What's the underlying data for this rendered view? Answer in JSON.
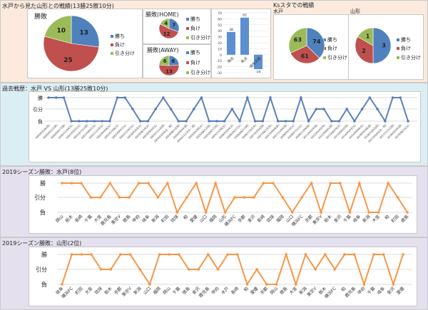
{
  "colors": {
    "win": "#4f81bd",
    "loss": "#c0504d",
    "draw": "#9bbb59",
    "line_history": "#5a80b8",
    "line_season": "#f79646",
    "top_bg": "#fbeadd",
    "history_bg": "#dbeef4",
    "season_bg": "#e5e0ee"
  },
  "legend": {
    "win": "勝ち",
    "loss": "負け",
    "draw": "引き分け"
  },
  "top": {
    "title": "水戸から見た山形との戦績(13勝25敗10分)",
    "total": {
      "title": "勝敗",
      "win": 13,
      "loss": 25,
      "draw": 10
    },
    "home": {
      "title": "勝敗(HOME)",
      "win": 7,
      "loss": 12,
      "draw": 4
    },
    "away": {
      "title": "勝敗(AWAY)",
      "win": 6,
      "loss": 13,
      "draw": 6
    },
    "goals": {
      "type": "bar",
      "categories": [
        "得点",
        "失点",
        "得失点差"
      ],
      "values": [
        38,
        62,
        -24
      ],
      "ylim": [
        -30,
        70
      ],
      "ticks": [
        "70",
        "60",
        "50",
        "40",
        "30",
        "20",
        "10",
        "0",
        "-10",
        "-20",
        "-30"
      ]
    }
  },
  "ks": {
    "title": "Ksスタでの戦績",
    "mito": {
      "label": "水戸",
      "win": 74,
      "loss": 61,
      "draw": 63
    },
    "yamagata": {
      "label": "山形",
      "win": 3,
      "loss": 2,
      "draw": 1
    }
  },
  "history": {
    "title": "過去戦歴：水戸 VS 山形(13勝25敗10分)",
    "y_labels": [
      "勝",
      "引分",
      "負"
    ]
  },
  "mito_season": {
    "title": "2019シーズン勝敗：水戸(8位)",
    "y_labels": [
      "勝",
      "引分",
      "負"
    ]
  },
  "yamagata_season": {
    "title": "2019シーズン勝敗：山形(2位)",
    "y_labels": [
      "勝",
      "引分",
      "負"
    ]
  },
  "chart_data": [
    {
      "type": "line",
      "title": "過去戦歴：水戸 VS 山形(13勝25敗10分)",
      "y_categories": [
        "負",
        "引分",
        "勝"
      ],
      "x": [
        "2000/03/26(日)",
        "2000/05/21(日)",
        "2000/09/17(日)",
        "2000/11/04(土)",
        "2001/03/31(土)",
        "2001/07/22(日)",
        "2001/09/01(土)",
        "2001/11/10(土)",
        "2002/04/06(土)",
        "2002/07/06(土)",
        "2002/09/07(土)",
        "2002/11/02(土)",
        "2003/05/03(土)",
        "2003/06/14(土)",
        "2003/09/20(土)",
        "2003/11/23(日)",
        "2004/03/20(土・祝)",
        "2004/06/13(日)",
        "2004/09/05(日)",
        "2004/11/23(火・祝)",
        "2005/04/30(土)",
        "2005/06/12(日)",
        "2005/08/17(水)",
        "2005/11/26(土)",
        "2006/03/04(土)",
        "2006/05/27(土)",
        "2006/08/27(日)",
        "2006/11/02(木)",
        "2007/03/04(日)",
        "2007/06/13(水)",
        "2007/09/09(日)",
        "2007/11/04(日)",
        "2008/05/10(土)",
        "2008/07/12(土)",
        "2008/11/09(日)",
        "2011/04/24(日)",
        "2012/05/03(木)",
        "2012/08/05(日)",
        "2013/06/29(土)",
        "2013/09/01(日)",
        "2014/05/03(土)",
        "2014/09/06(土)",
        "2016/05/08(日)",
        "2016/10/02(日)",
        "2017/05/03(水・祝)",
        "2017/11/12(日)",
        "2018/03/25(日)",
        "2019/06/15(土)"
      ],
      "values": [
        2,
        2,
        2,
        0,
        0,
        0,
        0,
        0,
        0,
        2,
        2,
        1,
        0,
        0,
        1,
        2,
        1,
        0,
        0,
        1,
        2,
        0,
        0,
        0,
        1,
        0,
        2,
        0,
        0,
        2,
        0,
        0,
        0,
        2,
        0,
        1,
        1,
        0,
        0,
        1,
        0,
        1,
        2,
        1,
        0,
        2,
        2,
        0
      ]
    },
    {
      "type": "line",
      "title": "2019シーズン勝敗：水戸(8位)",
      "y_categories": [
        "負",
        "引分",
        "勝"
      ],
      "x": [
        "岡山",
        "栃木",
        "長崎",
        "千葉",
        "大宮",
        "鹿児島",
        "東京V",
        "徳島",
        "甲府",
        "岐阜",
        "新潟",
        "町田",
        "琉球",
        "柏",
        "愛媛",
        "山口",
        "福岡",
        "山形",
        "横浜FC",
        "京都",
        "金沢",
        "長崎",
        "琉球",
        "福岡",
        "山口",
        "横浜FC",
        "京都",
        "東京V",
        "栃木",
        "金沢",
        "千葉",
        "岐阜",
        "新潟",
        "大宮",
        "柏",
        "町田",
        "徳島"
      ],
      "values": [
        2,
        2,
        2,
        1,
        1,
        2,
        1,
        1,
        2,
        2,
        1,
        2,
        0,
        1,
        2,
        0,
        2,
        0,
        1,
        1,
        1,
        2,
        2,
        1,
        0,
        1,
        2,
        0,
        2,
        2,
        0,
        2,
        0,
        0,
        2,
        1,
        0
      ]
    },
    {
      "type": "line",
      "title": "2019シーズン勝敗：山形(2位)",
      "y_categories": [
        "負",
        "引分",
        "勝"
      ],
      "x": [
        "岐阜",
        "横浜FC",
        "町田",
        "大宮",
        "琉球",
        "栃木",
        "京都",
        "東京V",
        "新潟",
        "山口",
        "福岡",
        "岡山",
        "千葉",
        "徳島",
        "金沢",
        "鹿児島",
        "甲府",
        "水戸",
        "長崎",
        "柏",
        "愛媛",
        "京都",
        "岡山",
        "徳島",
        "大宮",
        "新潟",
        "東京V",
        "栃木",
        "横浜FC",
        "柏",
        "鹿児島",
        "甲府",
        "千葉",
        "岐阜",
        "金沢",
        "愛媛"
      ],
      "values": [
        0,
        2,
        2,
        2,
        1,
        1,
        2,
        2,
        1,
        0,
        2,
        2,
        2,
        1,
        1,
        2,
        1,
        2,
        2,
        0,
        1,
        0,
        0,
        2,
        0,
        2,
        1,
        2,
        1,
        2,
        2,
        0,
        2,
        2,
        0,
        2
      ]
    }
  ]
}
